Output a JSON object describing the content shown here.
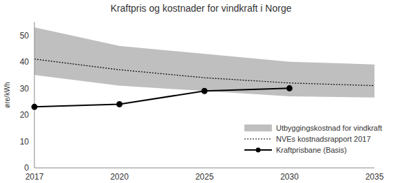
{
  "chart_data": {
    "type": "line",
    "title": "Kraftpris og kostnader for vindkraft i Norge",
    "y_label": "øre/kWh",
    "categories": [
      "2017",
      "2020",
      "2025",
      "2030",
      "2035"
    ],
    "series": [
      {
        "name": "Utbyggingskostnad for vindkraft",
        "type": "area",
        "color": "#bfbfbf",
        "low": [
          35,
          31,
          29,
          27,
          26.5
        ],
        "high": [
          53,
          46,
          43,
          40,
          39
        ]
      },
      {
        "name": "NVEs kostnadsrapport 2017",
        "type": "line",
        "color": "#000000",
        "line_style": "dotted",
        "values": [
          41,
          37,
          34,
          32,
          31
        ]
      },
      {
        "name": "Kraftprisbane (Basis)",
        "type": "line",
        "color": "#000000",
        "line_style": "solid",
        "marker": "circle",
        "values": [
          23,
          24,
          29,
          30,
          null
        ]
      }
    ],
    "ylim": [
      0,
      55
    ],
    "yticks": [
      0,
      10,
      20,
      30,
      40,
      50
    ],
    "grid": false,
    "legend": "lower right"
  }
}
